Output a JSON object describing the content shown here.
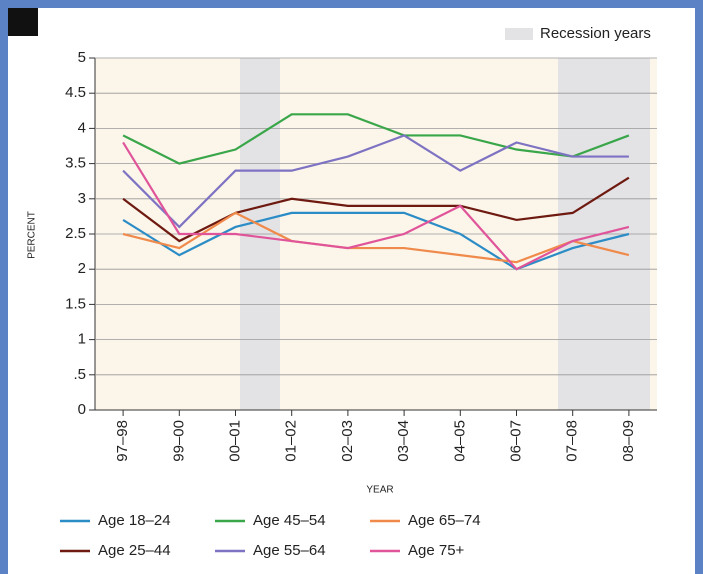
{
  "chart_data": {
    "type": "line",
    "x_label": "YEAR",
    "y_label": "PERCENT",
    "band_legend": "Recession years",
    "categories": [
      "97–98",
      "99–00",
      "00–01",
      "01–02",
      "02–03",
      "03–04",
      "04–05",
      "06–07",
      "07–08",
      "08–09"
    ],
    "series": [
      {
        "name": "Age 18–24",
        "color": "#2b8cc6",
        "values": [
          2.7,
          2.2,
          2.6,
          2.8,
          2.8,
          2.8,
          2.5,
          2.0,
          2.3,
          2.5
        ]
      },
      {
        "name": "Age 25–44",
        "color": "#6e1a10",
        "values": [
          3.0,
          2.4,
          2.8,
          3.0,
          2.9,
          2.9,
          2.9,
          2.7,
          2.8,
          3.3
        ]
      },
      {
        "name": "Age 45–54",
        "color": "#3aa64a",
        "values": [
          3.9,
          3.5,
          3.7,
          4.2,
          4.2,
          3.9,
          3.9,
          3.7,
          3.6,
          3.9
        ]
      },
      {
        "name": "Age 55–64",
        "color": "#7e72c2",
        "values": [
          3.4,
          2.6,
          3.4,
          3.4,
          3.6,
          3.9,
          3.4,
          3.8,
          3.6,
          3.6
        ]
      },
      {
        "name": "Age 65–74",
        "color": "#f08a4b",
        "values": [
          2.5,
          2.3,
          2.8,
          2.4,
          2.3,
          2.3,
          2.2,
          2.1,
          2.4,
          2.2
        ]
      },
      {
        "name": "Age 75+",
        "color": "#e0559a",
        "values": [
          3.8,
          2.5,
          2.5,
          2.4,
          2.3,
          2.5,
          2.9,
          2.0,
          2.4,
          2.6
        ]
      }
    ],
    "ylim": [
      0,
      5
    ],
    "yticks": [
      0,
      {
        "value": 0.5,
        "label": ".5"
      },
      1,
      1.5,
      2,
      2.5,
      3,
      3.5,
      4,
      4.5,
      5
    ],
    "grid": true
  }
}
